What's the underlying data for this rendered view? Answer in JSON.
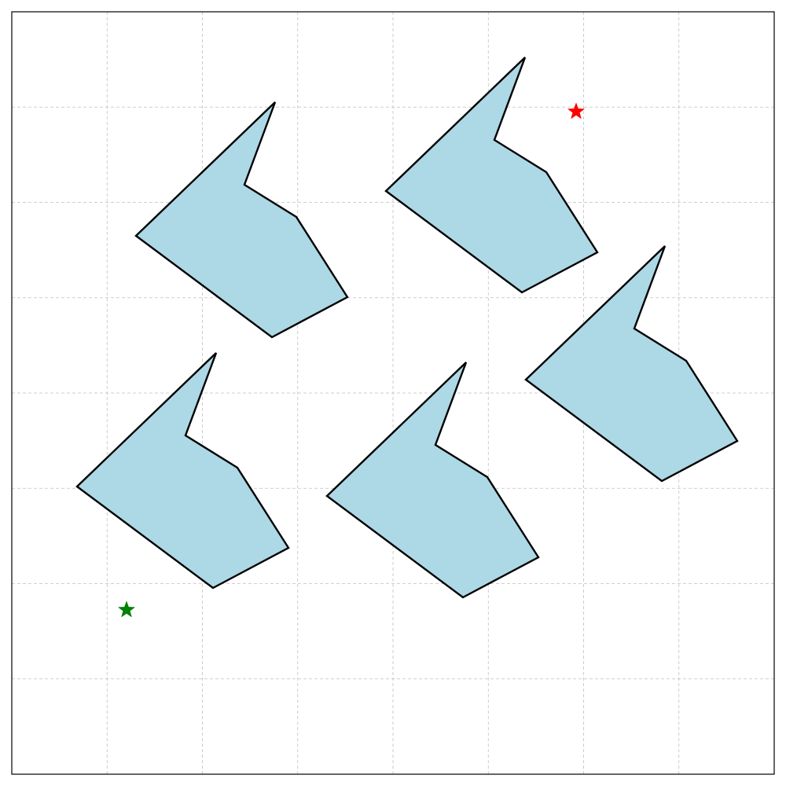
{
  "diagram": {
    "background_color": "#ffffff",
    "grid": {
      "visible": true,
      "style": "dashed",
      "color": "#c0c0c0",
      "divisions": 8
    },
    "frame_color": "#000000",
    "obstacle_fill": "#add8e6",
    "obstacle_stroke": "#000000",
    "obstacles": [
      {
        "id": "obstacle-1"
      },
      {
        "id": "obstacle-2"
      },
      {
        "id": "obstacle-3"
      },
      {
        "id": "obstacle-4"
      },
      {
        "id": "obstacle-5"
      }
    ],
    "markers": [
      {
        "id": "goal",
        "shape": "star",
        "color": "#ff0000"
      },
      {
        "id": "start",
        "shape": "star",
        "color": "#008000"
      }
    ]
  }
}
